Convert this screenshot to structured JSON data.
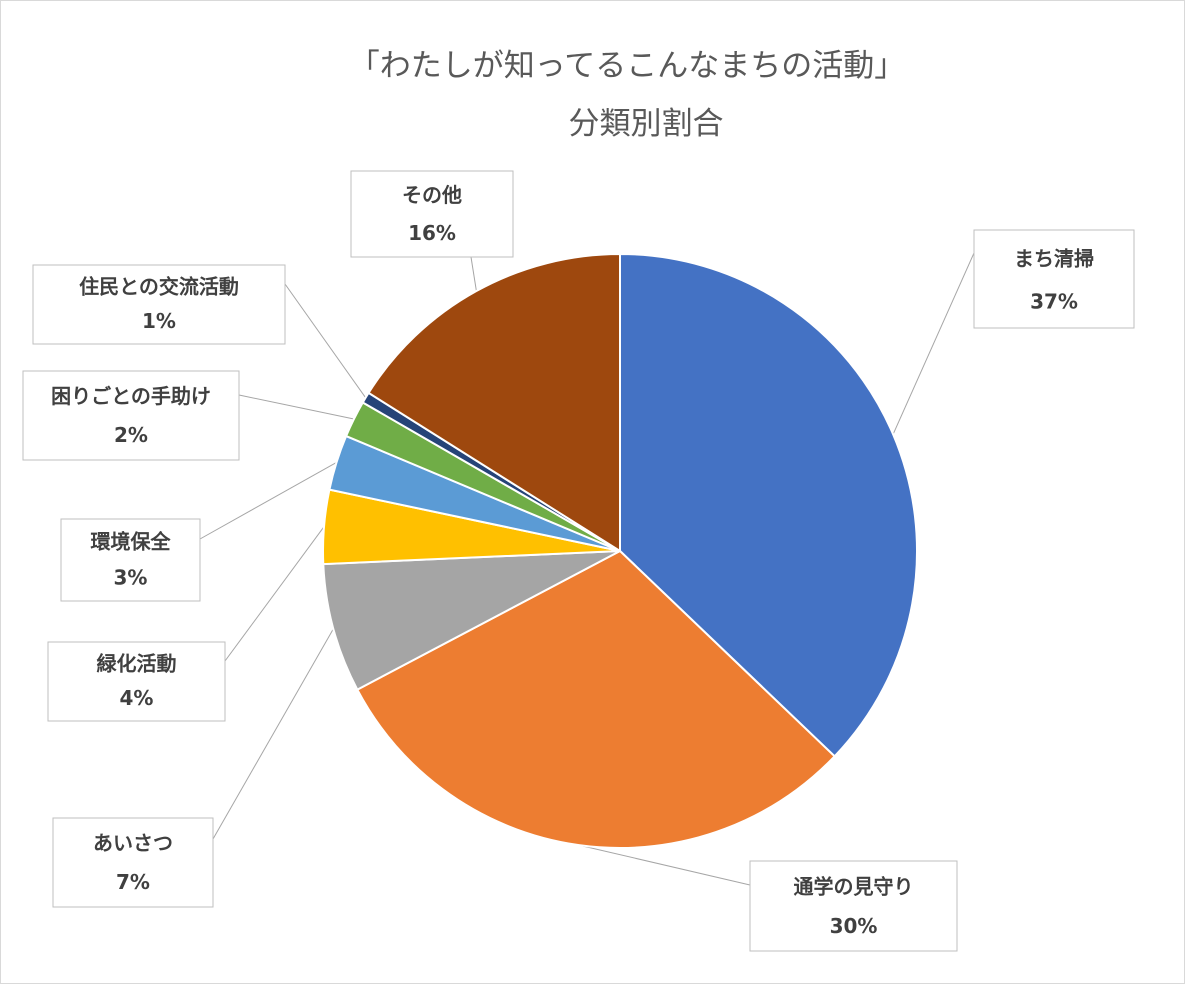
{
  "chart_data": {
    "type": "pie",
    "title": "「わたしが知ってるこんなまちの活動」",
    "subtitle": "分類別割合",
    "start_angle_deg": 0,
    "direction": "clockwise",
    "legend": "none",
    "data_labels": "category name and percentage in callout boxes",
    "slices": [
      {
        "name": "まち清掃",
        "value": 37,
        "label": "37%",
        "color": "#4472C4"
      },
      {
        "name": "通学の見守り",
        "value": 30,
        "label": "30%",
        "color": "#ED7D31"
      },
      {
        "name": "あいさつ",
        "value": 7,
        "label": "7%",
        "color": "#A5A5A5"
      },
      {
        "name": "緑化活動",
        "value": 4,
        "label": "4%",
        "color": "#FFC000"
      },
      {
        "name": "環境保全",
        "value": 3,
        "label": "3%",
        "color": "#5B9BD5"
      },
      {
        "name": "困りごとの手助け",
        "value": 2,
        "label": "2%",
        "color": "#70AD47"
      },
      {
        "name": "住民との交流活動",
        "value": 0.6,
        "label": "1%",
        "color": "#264478"
      },
      {
        "name": "その他",
        "value": 16,
        "label": "16%",
        "color": "#9E480E"
      }
    ]
  }
}
